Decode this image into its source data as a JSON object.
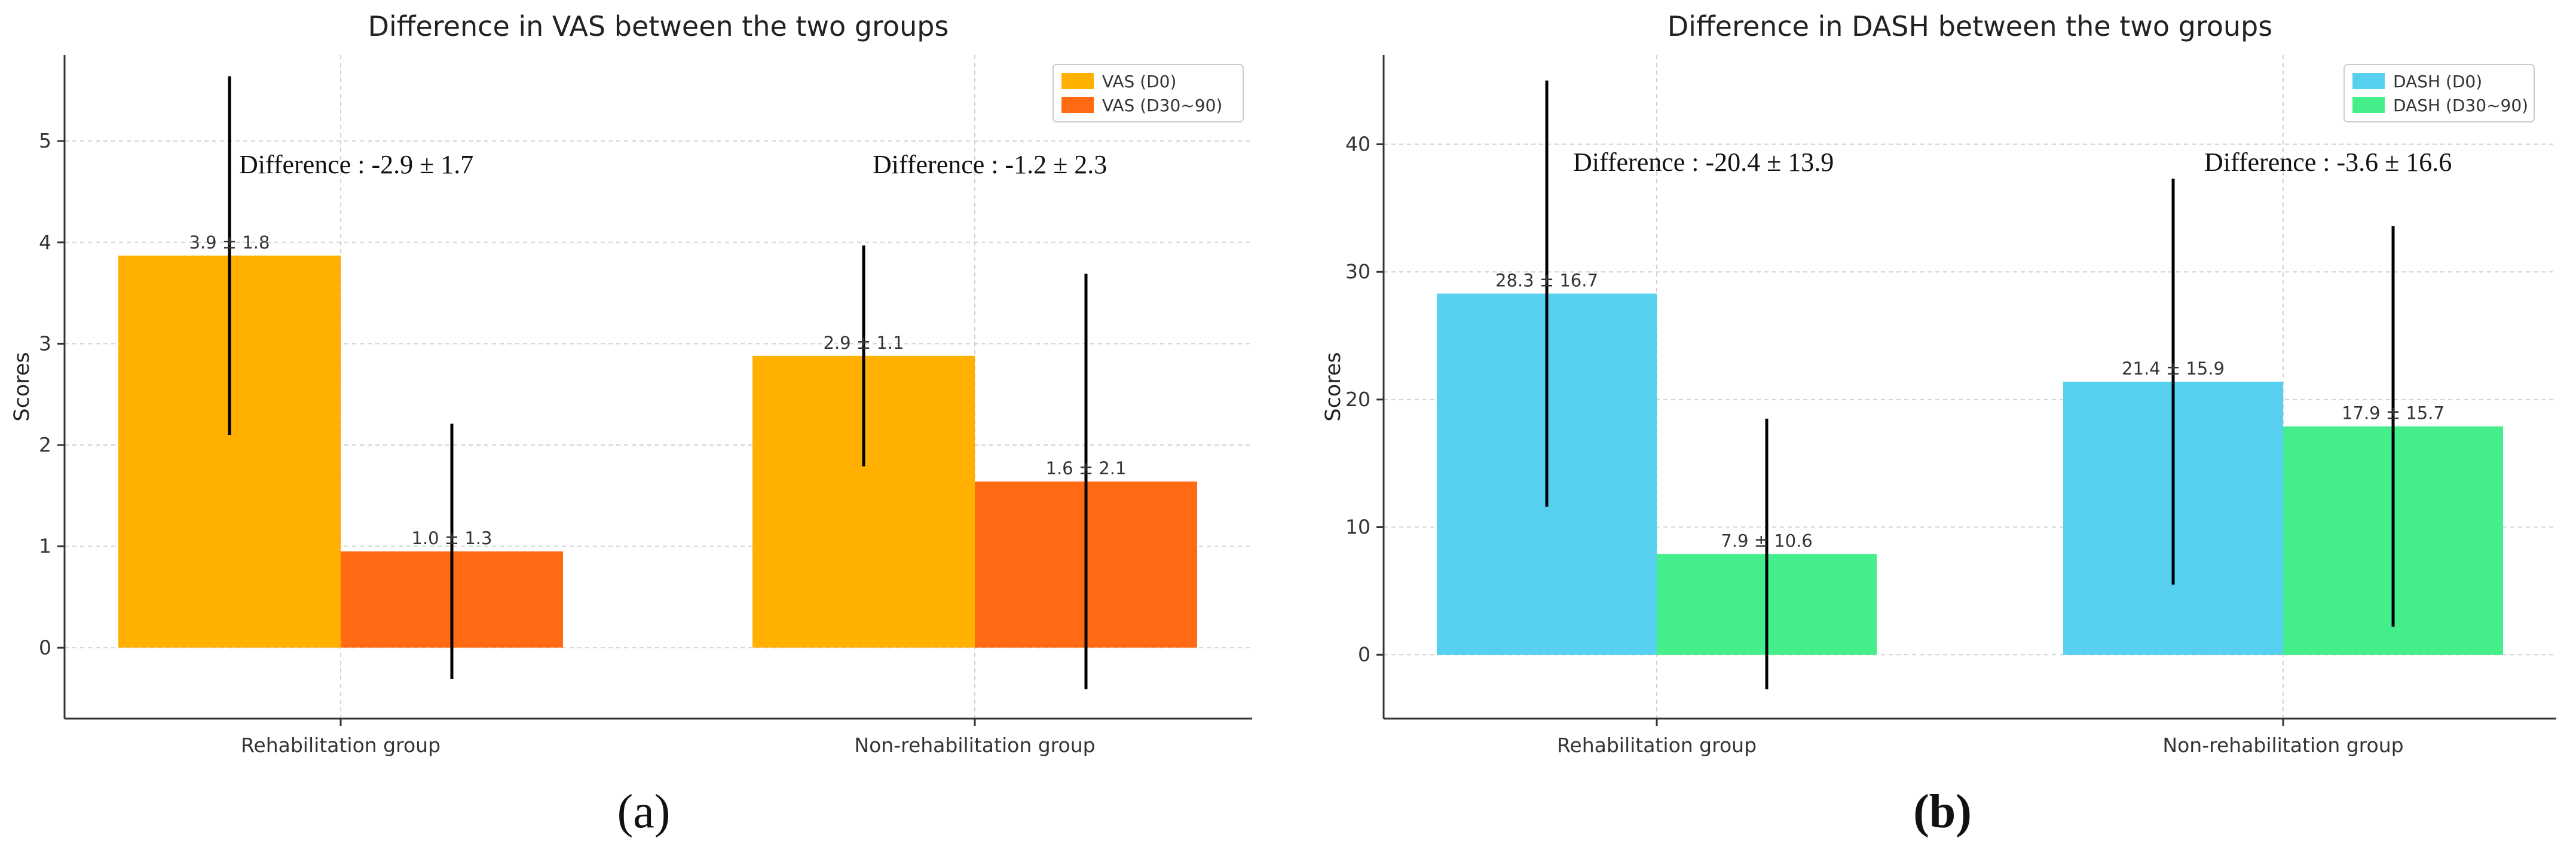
{
  "chart_data": [
    {
      "type": "bar",
      "title": "Difference in VAS between the two groups",
      "xlabel": "",
      "ylabel": "Scores",
      "ylim": [
        -0.7,
        5.85
      ],
      "yticks": [
        0,
        1,
        2,
        3,
        4,
        5
      ],
      "categories": [
        "Rehabilitation group",
        "Non-rehabilitation group"
      ],
      "series": [
        {
          "name": "VAS (D0)",
          "color": "#FFB000",
          "values": [
            3.87,
            2.88
          ],
          "errors": [
            1.77,
            1.09
          ],
          "labels": [
            "3.9 ± 1.8",
            "2.9 ± 1.1"
          ]
        },
        {
          "name": "VAS (D30~90)",
          "color": "#FF6A13",
          "values": [
            0.95,
            1.64
          ],
          "errors": [
            1.26,
            2.05
          ],
          "labels": [
            "1.0 ± 1.3",
            "1.6 ± 2.1"
          ]
        }
      ],
      "annotations": [
        "Difference : -2.9 ± 1.7",
        "Difference : -1.2 ± 2.3"
      ],
      "legend_position": "top-right",
      "grid": true,
      "panel_label": "(a)"
    },
    {
      "type": "bar",
      "title": "Difference in DASH between the two groups",
      "xlabel": "",
      "ylabel": "Scores",
      "ylim": [
        -5.0,
        47.0
      ],
      "yticks": [
        0,
        10,
        20,
        30,
        40
      ],
      "categories": [
        "Rehabilitation group",
        "Non-rehabilitation group"
      ],
      "series": [
        {
          "name": "DASH (D0)",
          "color": "#57CFEE",
          "values": [
            28.3,
            21.4
          ],
          "errors": [
            16.7,
            15.9
          ],
          "labels": [
            "28.3 ± 16.7",
            "21.4 ± 15.9"
          ]
        },
        {
          "name": "DASH (D30~90)",
          "color": "#44EE8A",
          "values": [
            7.9,
            17.9
          ],
          "errors": [
            10.6,
            15.7
          ],
          "labels": [
            "7.9 ± 10.6",
            "17.9 ± 15.7"
          ]
        }
      ],
      "annotations": [
        "Difference : -20.4 ± 13.9",
        "Difference : -3.6 ± 16.6"
      ],
      "legend_position": "top-right",
      "grid": true,
      "panel_label": "(b)"
    }
  ]
}
